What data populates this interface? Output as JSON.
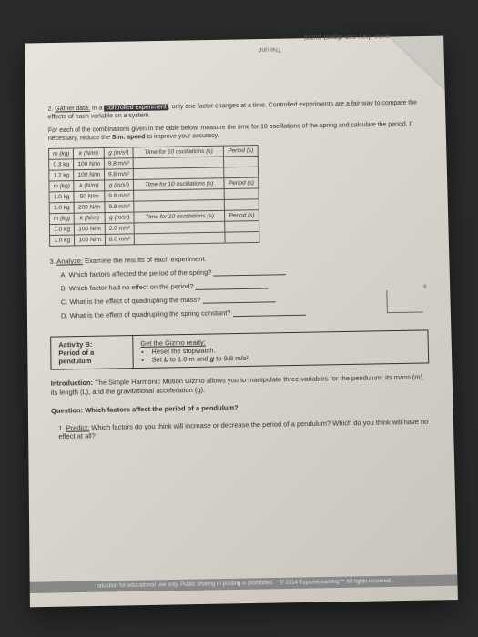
{
  "upside_text1": "ause they can digest",
  "upside_text2": "punoj",
  "upside_text3": "The und",
  "q2": {
    "num": "2.",
    "label": "Gather data:",
    "text1": "In a",
    "boxed": "controlled experiment",
    "text2": ", only one factor changes at a time. Controlled experiments are a fair way to compare the effects of each variable on a system.",
    "text3": "For each of the combinations given in the table below, measure the time for 10 oscillations of the spring and calculate the period. If necessary, reduce the",
    "bold1": "Sim. speed",
    "text4": "to improve your accuracy."
  },
  "table": {
    "headers": [
      "m (kg)",
      "k (N/m)",
      "g (m/s²)",
      "Time for 10 oscillations (s)",
      "Period (s)"
    ],
    "rows1": [
      [
        "0.3 kg",
        "100 N/m",
        "9.8 m/s²",
        "",
        ""
      ],
      [
        "1.2 kg",
        "100 N/m",
        "9.8 m/s²",
        "",
        ""
      ]
    ],
    "rows2": [
      [
        "1.0 kg",
        "50 N/m",
        "9.8 m/s²",
        "",
        ""
      ],
      [
        "1.0 kg",
        "200 N/m",
        "9.8 m/s²",
        "",
        ""
      ]
    ],
    "rows3": [
      [
        "1.0 kg",
        "100 N/m",
        "2.0 m/s²",
        "",
        ""
      ],
      [
        "1.0 kg",
        "100 N/m",
        "8.0 m/s²",
        "",
        ""
      ]
    ]
  },
  "q3": {
    "num": "3.",
    "label": "Analyze:",
    "text": "Examine the results of each experiment.",
    "a": "A.  Which factors affected the period of the spring?",
    "b": "B.  Which factor had no effect on the period?",
    "c": "C.  What is the effect of quadrupling the mass?",
    "d": "D.  What is the effect of quadrupling the spring constant?"
  },
  "activity": {
    "title": "Activity B:",
    "subtitle1": "Period of a",
    "subtitle2": "pendulum",
    "gizmo": "Get the Gizmo ready:",
    "bullet1": "Reset the stopwatch.",
    "bullet2_a": "Set",
    "bullet2_L": "L",
    "bullet2_b": "to 1.0 m and",
    "bullet2_g": "g",
    "bullet2_c": "to 9.8 m/s²."
  },
  "intro": {
    "label": "Introduction:",
    "text": "The Simple Harmonic Motion Gizmo allows you to manipulate three variables for the pendulum: its mass (m), its length (L), and the gravitational acceleration (g)."
  },
  "question": {
    "label": "Question: Which factors affect the period of a pendulum?"
  },
  "predict": {
    "num": "1.",
    "label": "Predict:",
    "text": "Which factors do you think will increase or decrease the period of a pendulum? Which do you think will have no effect at all?"
  },
  "footer": {
    "left": "oduction for educational use only. Public sharing or posting is prohibited.",
    "right": "© 2014 ExploreLearning™ All rights reserved"
  }
}
